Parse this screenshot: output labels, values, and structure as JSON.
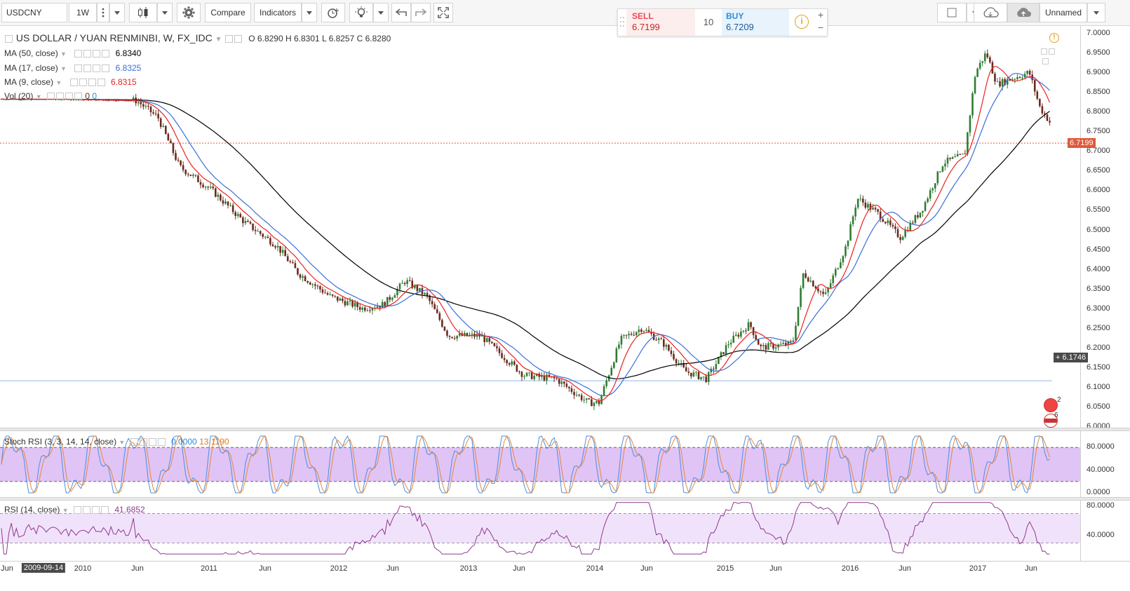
{
  "toolbar": {
    "symbol": "USDCNY",
    "interval": "1W",
    "compare": "Compare",
    "indicators": "Indicators",
    "layout_name": "Unnamed"
  },
  "trade": {
    "sell_label": "SELL",
    "sell_price_prefix": "6.71",
    "sell_price_big": "99",
    "qty": "10",
    "buy_label": "BUY",
    "buy_price_prefix": "6.72",
    "buy_price_big": "09"
  },
  "legend": {
    "title": "US DOLLAR / YUAN RENMINBI, W, FX_IDC",
    "ohlc": "O 6.8290  H 6.8301  L 6.8257  C 6.8280",
    "ma50": "MA (50, close)",
    "ma50_val": "6.8340",
    "ma17": "MA (17, close)",
    "ma17_val": "6.8325",
    "ma9": "MA (9, close)",
    "ma9_val": "6.8315",
    "vol": "Vol (20)",
    "vol_val1": "0",
    "vol_val2": "0",
    "stoch": "Stoch RSI (3, 3, 14, 14, close)",
    "stoch_k": "0.0000",
    "stoch_d": "13.1190",
    "rsi": "RSI (14, close)",
    "rsi_val": "41.6852"
  },
  "price_axis": [
    "7.0000",
    "6.9500",
    "6.9000",
    "6.8500",
    "6.8000",
    "6.7500",
    "6.7000",
    "6.6500",
    "6.6000",
    "6.5500",
    "6.5000",
    "6.4500",
    "6.4000",
    "6.3500",
    "6.3000",
    "6.2500",
    "6.2000",
    "6.1500",
    "6.1000",
    "6.0500",
    "6.0000"
  ],
  "current_price": "6.7199",
  "crosshair_price": "6.1746",
  "stoch_axis": [
    "80.0000",
    "40.0000",
    "0.0000"
  ],
  "rsi_axis": [
    "80.0000",
    "40.0000"
  ],
  "time_axis": [
    "Jun",
    "2009-09-14",
    "2010",
    "Jun",
    "2011",
    "Jun",
    "2012",
    "Jun",
    "2013",
    "Jun",
    "2014",
    "Jun",
    "2015",
    "Jun",
    "2016",
    "Jun",
    "2017",
    "Jun"
  ],
  "markers": {
    "events_count_1": "2",
    "events_count_2": "6"
  },
  "colors": {
    "ma50": "#000000",
    "ma17": "#3a6fd8",
    "ma9": "#e8231f",
    "up": "#2f7d32",
    "down": "#6b2a1e",
    "stoch_band": "#e0c4f5",
    "rsi_band": "#f1e2fb",
    "price_line": "#e05a3a"
  },
  "chart_data": {
    "type": "candlestick",
    "title": "US DOLLAR / YUAN RENMINBI, W, FX_IDC",
    "close_series": [
      [
        "2009-06",
        6.832
      ],
      [
        "2010-01",
        6.83
      ],
      [
        "2010-06",
        6.828
      ],
      [
        "2010-08",
        6.785
      ],
      [
        "2010-10",
        6.66
      ],
      [
        "2011-01",
        6.6
      ],
      [
        "2011-04",
        6.52
      ],
      [
        "2011-07",
        6.46
      ],
      [
        "2011-09",
        6.39
      ],
      [
        "2011-12",
        6.33
      ],
      [
        "2012-03",
        6.3
      ],
      [
        "2012-05",
        6.31
      ],
      [
        "2012-07",
        6.37
      ],
      [
        "2012-09",
        6.33
      ],
      [
        "2012-11",
        6.23
      ],
      [
        "2013-02",
        6.23
      ],
      [
        "2013-04",
        6.18
      ],
      [
        "2013-06",
        6.13
      ],
      [
        "2013-09",
        6.12
      ],
      [
        "2013-12",
        6.06
      ],
      [
        "2014-01",
        6.06
      ],
      [
        "2014-03",
        6.22
      ],
      [
        "2014-05",
        6.25
      ],
      [
        "2014-07",
        6.21
      ],
      [
        "2014-09",
        6.14
      ],
      [
        "2014-11",
        6.12
      ],
      [
        "2015-01",
        6.21
      ],
      [
        "2015-03",
        6.26
      ],
      [
        "2015-04",
        6.2
      ],
      [
        "2015-07",
        6.21
      ],
      [
        "2015-08",
        6.39
      ],
      [
        "2015-10",
        6.33
      ],
      [
        "2015-12",
        6.46
      ],
      [
        "2016-01",
        6.58
      ],
      [
        "2016-03",
        6.54
      ],
      [
        "2016-05",
        6.48
      ],
      [
        "2016-07",
        6.55
      ],
      [
        "2016-09",
        6.67
      ],
      [
        "2016-11",
        6.69
      ],
      [
        "2016-12",
        6.9
      ],
      [
        "2017-01",
        6.95
      ],
      [
        "2017-02",
        6.87
      ],
      [
        "2017-04",
        6.89
      ],
      [
        "2017-05",
        6.9
      ],
      [
        "2017-06",
        6.81
      ],
      [
        "2017-07",
        6.77
      ],
      [
        "2017-08",
        6.72
      ]
    ],
    "ylim": [
      6.0,
      7.0
    ]
  }
}
